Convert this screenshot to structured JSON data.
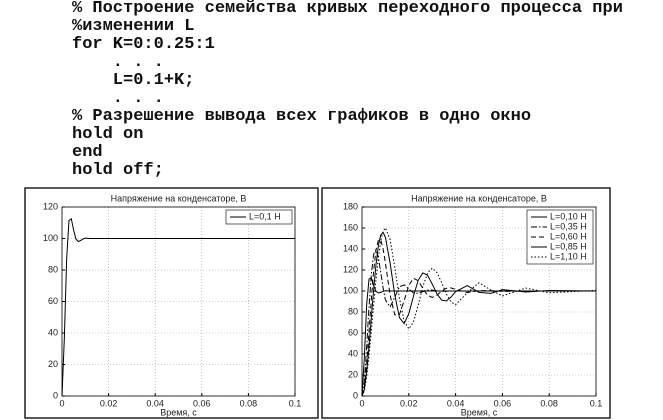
{
  "code": {
    "lines": [
      "% Построение семейства кривых переходного процесса при",
      "%изменении L",
      "for K=0:0.25:1",
      "    . . .",
      "    L=0.1+K;",
      "    . . .",
      "% Разрешение вывода всех графиков в одно окно",
      "hold on",
      "end",
      "hold off;"
    ]
  },
  "chart_data": [
    {
      "type": "line",
      "title": "Напряжение на конденсаторе, В",
      "xlabel": "Время, с",
      "x": [
        0,
        0.001,
        0.002,
        0.003,
        0.004,
        0.005,
        0.006,
        0.007,
        0.008,
        0.009,
        0.01,
        0.012,
        0.014,
        0.016,
        0.018,
        0.02,
        0.022,
        0.024,
        0.026,
        0.028,
        0.03,
        0.032,
        0.034,
        0.036,
        0.038,
        0.04,
        0.045,
        0.05,
        0.055,
        0.06,
        0.07,
        0.08,
        0.1
      ],
      "series": [
        {
          "name": "L=0,1 H",
          "color": "#000000",
          "dash": "solid",
          "values": [
            0,
            36.4,
            87.1,
            111.5,
            112.5,
            105.2,
            99.6,
            98.1,
            98.7,
            99.7,
            100.2,
            100,
            100,
            100,
            100,
            100,
            100,
            100,
            100,
            100,
            100,
            100,
            100,
            100,
            100,
            100,
            100,
            100,
            100,
            100,
            100,
            100,
            100
          ]
        }
      ],
      "xlim": [
        0,
        0.1
      ],
      "xticks": [
        0,
        0.02,
        0.04,
        0.06,
        0.08,
        0.1
      ],
      "ylim": [
        0,
        120
      ],
      "yticks": [
        0,
        20,
        40,
        60,
        80,
        100,
        120
      ],
      "grid": true,
      "legend": "upper right"
    },
    {
      "type": "line",
      "title": "Напряжение на конденсаторе, В",
      "xlabel": "Время, с",
      "x": [
        0,
        0.001,
        0.002,
        0.003,
        0.004,
        0.005,
        0.006,
        0.007,
        0.008,
        0.009,
        0.01,
        0.012,
        0.014,
        0.016,
        0.018,
        0.02,
        0.022,
        0.024,
        0.026,
        0.028,
        0.03,
        0.032,
        0.034,
        0.036,
        0.038,
        0.04,
        0.045,
        0.05,
        0.055,
        0.06,
        0.07,
        0.08,
        0.1
      ],
      "series": [
        {
          "name": "L=0,10 H",
          "color": "#000000",
          "dash": "solid",
          "values": [
            0,
            36.4,
            87.1,
            111.5,
            112.5,
            105.2,
            99.6,
            98.1,
            98.7,
            99.7,
            100.2,
            100,
            100,
            100,
            100,
            100,
            100,
            100,
            100,
            100,
            100,
            100,
            100,
            100,
            100,
            100,
            100,
            100,
            100,
            100,
            100,
            100,
            100
          ]
        },
        {
          "name": "L=0,35 H",
          "color": "#000000",
          "dash": "dashdot",
          "values": [
            0,
            14.0,
            46.9,
            84.9,
            116.5,
            135.1,
            139.3,
            131.9,
            118.0,
            103.2,
            91.6,
            84.8,
            94.0,
            104.0,
            105.9,
            101.9,
            98.2,
            97.8,
            99.4,
            100.8,
            100.8,
            100.2,
            99.7,
            99.7,
            100,
            100,
            100,
            100,
            100,
            100,
            100,
            100,
            100
          ]
        },
        {
          "name": "L=0,60 H",
          "color": "#000000",
          "dash": "dashed",
          "values": [
            0,
            8.5,
            30.9,
            61.0,
            92.4,
            119.9,
            139.2,
            148.7,
            148.6,
            140.3,
            126.7,
            96.2,
            77.3,
            77.6,
            90.8,
            105.3,
            112.1,
            109.8,
            102.5,
            96.0,
            93.9,
            96.0,
            99.8,
            102.5,
            103.0,
            101.5,
            98.5,
            100.4,
            100.4,
            99.6,
            100,
            100,
            100
          ]
        },
        {
          "name": "L=0,85 H",
          "color": "#000000",
          "dash": "solid",
          "values": [
            0,
            6.2,
            23.1,
            47.1,
            74.7,
            101.9,
            125.6,
            143.2,
            153.3,
            155.8,
            151.1,
            126.8,
            96.5,
            74.6,
            69.0,
            78.4,
            95.1,
            110.2,
            117.2,
            115.1,
            106.7,
            97.4,
            91.4,
            90.5,
            94.1,
            99.4,
            105.2,
            98.7,
            97.7,
            101.3,
            99.1,
            100.5,
            100
          ]
        },
        {
          "name": "L=1,10 H",
          "color": "#000000",
          "dash": "dotted",
          "values": [
            0,
            4.9,
            18.4,
            38.3,
            62.2,
            87.4,
            111.4,
            132.0,
            147.6,
            157.0,
            160.1,
            149.1,
            122.7,
            93.1,
            71.4,
            63.9,
            70.5,
            86.3,
            104.1,
            117.2,
            121.7,
            117.7,
            108.2,
            97.5,
            89.7,
            86.9,
            98.3,
            107.9,
            101.0,
            95.3,
            102.8,
            98.3,
            100.6
          ]
        }
      ],
      "xlim": [
        0,
        0.1
      ],
      "xticks": [
        0,
        0.02,
        0.04,
        0.06,
        0.08,
        0.1
      ],
      "ylim": [
        0,
        180
      ],
      "yticks": [
        0,
        20,
        40,
        60,
        80,
        100,
        120,
        140,
        160,
        180
      ],
      "grid": true,
      "legend": "upper right"
    }
  ]
}
